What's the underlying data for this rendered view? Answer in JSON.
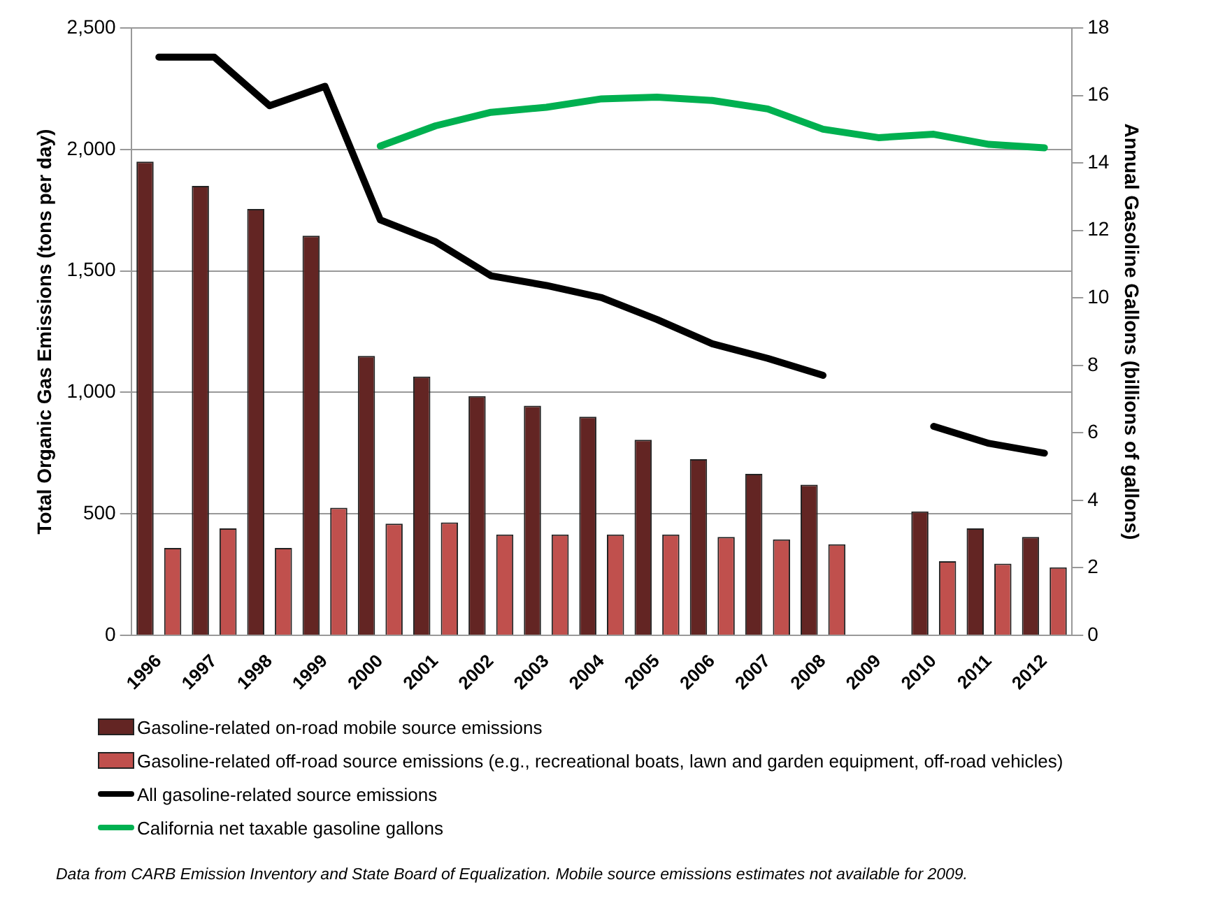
{
  "chart_data": {
    "type": "bar",
    "ylabel": "Total Organic Gas Emissions (tons per day)",
    "y2label": "Annual Gasoline Gallons (billions of gallons)",
    "categories": [
      "1996",
      "1997",
      "1998",
      "1999",
      "2000",
      "2001",
      "2002",
      "2003",
      "2004",
      "2005",
      "2006",
      "2007",
      "2008",
      "2009",
      "2010",
      "2011",
      "2012"
    ],
    "series": [
      {
        "name": "Gasoline-related on-road mobile source emissions",
        "color": "#632523",
        "values": [
          1950,
          1850,
          1755,
          1645,
          1150,
          1065,
          985,
          945,
          900,
          805,
          725,
          665,
          620,
          null,
          510,
          440,
          405
        ]
      },
      {
        "name": "Gasoline-related off-road source emissions (e.g., recreational boats, lawn and garden equipment, off-road vehicles)",
        "color": "#c0504d",
        "values": [
          360,
          440,
          360,
          525,
          460,
          465,
          415,
          415,
          415,
          415,
          405,
          395,
          375,
          null,
          305,
          295,
          280
        ]
      },
      {
        "name": "All gasoline-related source emissions",
        "type": "line",
        "color": "#000000",
        "values": [
          2380,
          2380,
          2180,
          2260,
          1710,
          1620,
          1480,
          1440,
          1390,
          1300,
          1200,
          1140,
          1070,
          null,
          860,
          790,
          750
        ]
      },
      {
        "name": "California net taxable gasoline gallons",
        "type": "line",
        "axis": "y2",
        "color": "#00b050",
        "values": [
          null,
          null,
          null,
          null,
          14.5,
          15.1,
          15.5,
          15.65,
          15.9,
          15.95,
          15.85,
          15.6,
          15.0,
          14.75,
          14.85,
          14.55,
          14.45
        ]
      }
    ],
    "ylim": [
      0,
      2500
    ],
    "yticks": [
      {
        "value": 0,
        "label": "0"
      },
      {
        "value": 500,
        "label": "500"
      },
      {
        "value": 1000,
        "label": "1,000"
      },
      {
        "value": 1500,
        "label": "1,500"
      },
      {
        "value": 2000,
        "label": "2,000"
      },
      {
        "value": 2500,
        "label": "2,500"
      }
    ],
    "y2lim": [
      0,
      18
    ],
    "y2ticks": [
      0,
      2,
      4,
      6,
      8,
      10,
      12,
      14,
      16,
      18
    ],
    "grid": "y",
    "legend": "bottom",
    "marker": "none",
    "line_style": "solid",
    "annotations": [
      "Data from CARB Emission Inventory and State Board of Equalization. Mobile source emissions estimates not available for 2009."
    ]
  }
}
